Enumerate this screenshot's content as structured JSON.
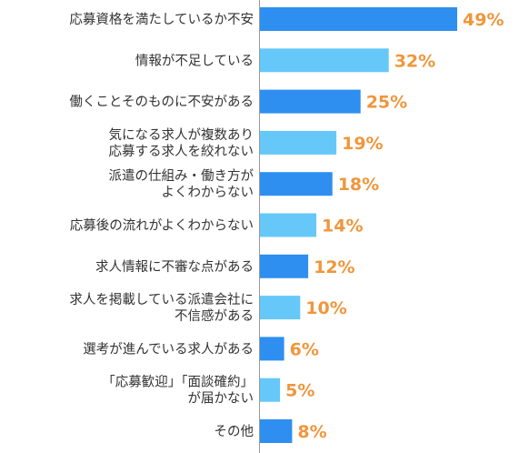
{
  "chart_data": {
    "type": "bar",
    "orientation": "horizontal",
    "categories": [
      [
        "応募資格を満たしているか不安"
      ],
      [
        "情報が不足している"
      ],
      [
        "働くことそのものに不安がある"
      ],
      [
        "気になる求人が複数あり",
        "応募する求人を絞れない"
      ],
      [
        "派遣の仕組み・働き方が",
        "よくわからない"
      ],
      [
        "応募後の流れがよくわからない"
      ],
      [
        "求人情報に不審な点がある"
      ],
      [
        "求人を掲載している派遣会社に",
        "不信感がある"
      ],
      [
        "選考が進んでいる求人がある"
      ],
      [
        "「応募歓迎」「面談確約」",
        "が届かない"
      ],
      [
        "その他"
      ]
    ],
    "values": [
      49,
      32,
      25,
      19,
      18,
      14,
      12,
      10,
      6,
      5,
      8
    ],
    "value_labels": [
      "49%",
      "32%",
      "25%",
      "19%",
      "18%",
      "14%",
      "12%",
      "10%",
      "6%",
      "5%",
      "8%"
    ],
    "colors": {
      "dark_bar": "#2e8ff0",
      "light_bar": "#66c8f8",
      "value_label": "#f0963c",
      "axis": "#999999",
      "text": "#333333"
    },
    "bar_shades": [
      "dark",
      "light",
      "dark",
      "light",
      "dark",
      "light",
      "dark",
      "light",
      "dark",
      "light",
      "dark"
    ],
    "xlim": [
      0,
      49
    ]
  }
}
